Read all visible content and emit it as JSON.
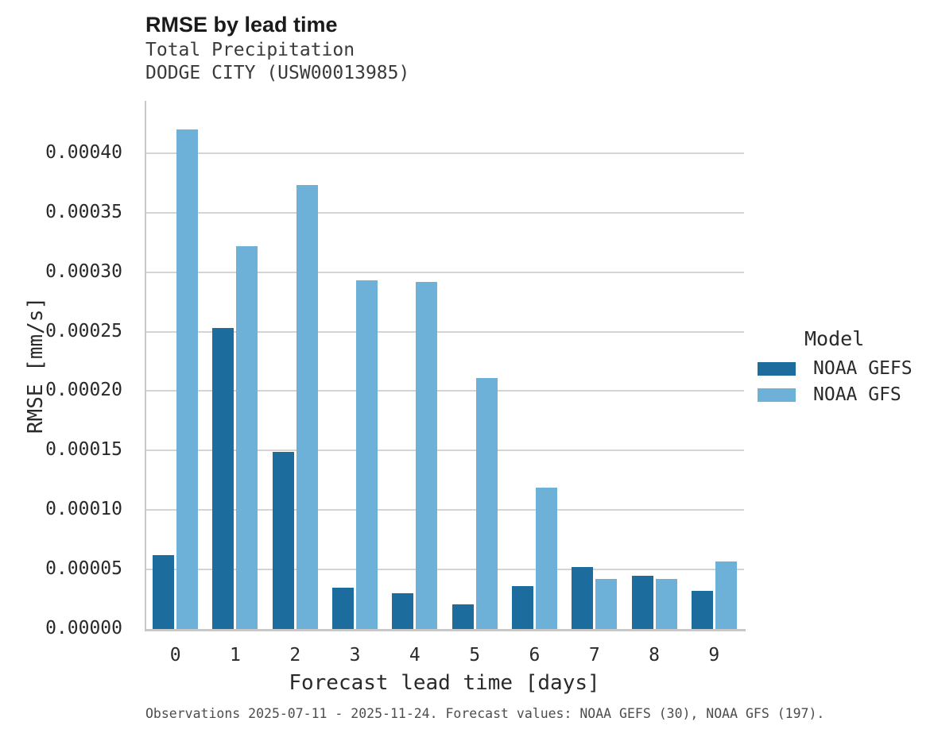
{
  "header": {
    "title": "RMSE by lead time"
  },
  "chart_data": {
    "type": "bar",
    "title": "RMSE by lead time",
    "subtitle": [
      "Total Precipitation",
      "DODGE CITY (USW00013985)"
    ],
    "xlabel": "Forecast lead time [days]",
    "ylabel": "RMSE [mm/s]",
    "categories": [
      "0",
      "1",
      "2",
      "3",
      "4",
      "5",
      "6",
      "7",
      "8",
      "9"
    ],
    "series": [
      {
        "name": "NOAA GEFS",
        "color": "#1c6d9e",
        "values": [
          6.2e-05,
          0.000253,
          0.000149,
          3.5e-05,
          3e-05,
          2.1e-05,
          3.6e-05,
          5.2e-05,
          4.5e-05,
          3.2e-05
        ]
      },
      {
        "name": "NOAA GFS",
        "color": "#6db0d8",
        "values": [
          0.00042,
          0.000322,
          0.000373,
          0.000293,
          0.000292,
          0.000211,
          0.000119,
          4.2e-05,
          4.2e-05,
          5.7e-05
        ]
      }
    ],
    "ylim": [
      0,
      0.000444
    ],
    "yticks": [
      0.0,
      5e-05,
      0.0001,
      0.00015,
      0.0002,
      0.00025,
      0.0003,
      0.00035,
      0.0004
    ],
    "ytick_labels": [
      "0.00000",
      "0.00005",
      "0.00010",
      "0.00015",
      "0.00020",
      "0.00025",
      "0.00030",
      "0.00035",
      "0.00040"
    ],
    "grid": "horizontal",
    "legend": {
      "title": "Model",
      "position": "right",
      "entries": [
        "NOAA GEFS",
        "NOAA GFS"
      ]
    }
  },
  "footnote": "Observations 2025-07-11 - 2025-11-24. Forecast values: NOAA GEFS (30), NOAA GFS (197)."
}
